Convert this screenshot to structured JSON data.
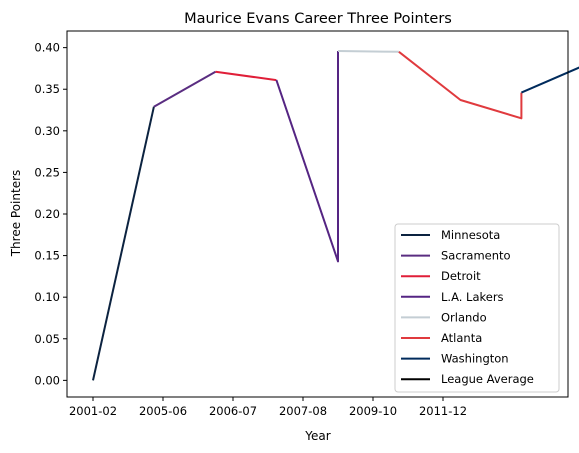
{
  "chart_data": {
    "type": "line",
    "title": "Maurice Evans  Career Three Pointers",
    "xlabel": "Year",
    "ylabel": "Three Pointers",
    "ylim": [
      -0.02,
      0.42
    ],
    "x_ticks": [
      "2001-02",
      "2005-06",
      "2006-07",
      "2007-08",
      "2009-10",
      "2011-12"
    ],
    "y_ticks": [
      "0.00",
      "0.05",
      "0.10",
      "0.15",
      "0.20",
      "0.25",
      "0.30",
      "0.35",
      "0.40"
    ],
    "grid": false,
    "legend_position": "lower-right",
    "series": [
      {
        "name": "Minnesota",
        "color": "#0c2340",
        "points": [
          [
            0.0,
            0.0
          ],
          [
            0.87,
            0.329
          ]
        ]
      },
      {
        "name": "Sacramento",
        "color": "#5a2d81",
        "points": [
          [
            0.87,
            0.329
          ],
          [
            1.75,
            0.371
          ]
        ]
      },
      {
        "name": "Detroit",
        "color": "#e01e38",
        "points": [
          [
            1.75,
            0.371
          ],
          [
            2.62,
            0.361
          ]
        ]
      },
      {
        "name": "L.A. Lakers",
        "color": "#552583",
        "points": [
          [
            2.62,
            0.361
          ],
          [
            3.5,
            0.143
          ],
          [
            3.5,
            0.396
          ]
        ]
      },
      {
        "name": "Orlando",
        "color": "#c4ced4",
        "points": [
          [
            3.5,
            0.396
          ],
          [
            4.37,
            0.395
          ]
        ]
      },
      {
        "name": "Atlanta",
        "color": "#e03a3e",
        "points": [
          [
            4.37,
            0.395
          ],
          [
            5.25,
            0.337
          ],
          [
            6.12,
            0.315
          ],
          [
            6.12,
            0.346
          ]
        ]
      },
      {
        "name": "Washington",
        "color": "#002b5c",
        "points": [
          [
            6.12,
            0.346
          ],
          [
            7.0,
            0.378
          ]
        ]
      },
      {
        "name": "League Average",
        "color": "#000000",
        "points": []
      }
    ]
  }
}
